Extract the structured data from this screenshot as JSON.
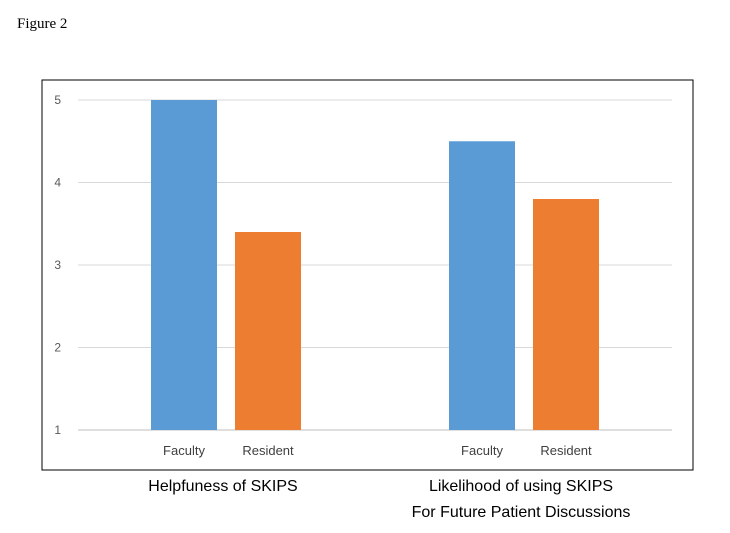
{
  "figure_label": "Figure 2",
  "chart_data": {
    "type": "bar",
    "title": "",
    "xlabel": "",
    "ylabel": "",
    "ylim": [
      1,
      5
    ],
    "yticks": [
      1,
      2,
      3,
      4,
      5
    ],
    "grid": true,
    "groups": [
      {
        "label_lines": [
          "Helpfuness of SKIPS"
        ],
        "bars": [
          {
            "category": "Faculty",
            "value": 5.0
          },
          {
            "category": "Resident",
            "value": 3.4
          }
        ]
      },
      {
        "label_lines": [
          "Likelihood of using SKIPS",
          "For Future Patient Discussions"
        ],
        "bars": [
          {
            "category": "Faculty",
            "value": 4.5
          },
          {
            "category": "Resident",
            "value": 3.8
          }
        ]
      }
    ],
    "colors": {
      "Faculty": "#5B9BD5",
      "Resident": "#ED7D31"
    }
  }
}
